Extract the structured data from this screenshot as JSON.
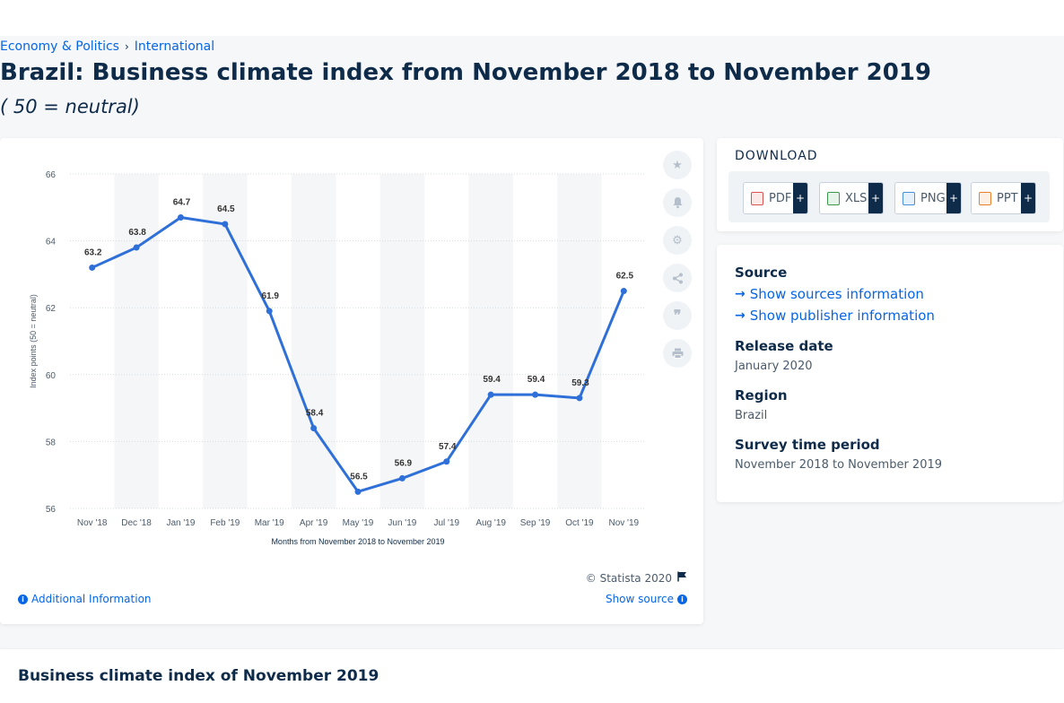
{
  "breadcrumb": {
    "level1": "Economy & Politics",
    "separator": "›",
    "level2": "International"
  },
  "page": {
    "title": "Brazil: Business climate index from November 2018 to November 2019",
    "subtitle": "( 50 = neutral)"
  },
  "chart_data": {
    "type": "line",
    "categories": [
      "Nov '18",
      "Dec '18",
      "Jan '19",
      "Feb '19",
      "Mar '19",
      "Apr '19",
      "May '19",
      "Jun '19",
      "Jul '19",
      "Aug '19",
      "Sep '19",
      "Oct '19",
      "Nov '19"
    ],
    "series": [
      {
        "values": [
          63.2,
          63.8,
          64.7,
          64.5,
          61.9,
          58.4,
          56.5,
          56.9,
          57.4,
          59.4,
          59.4,
          59.3,
          62.5
        ]
      }
    ],
    "data_labels": [
      "63.2",
      "63.8",
      "64.7",
      "64.5",
      "61.9",
      "58.4",
      "56.5",
      "56.9",
      "57.4",
      "59.4",
      "59.4",
      "59.3",
      "62.5"
    ],
    "ylim": [
      56,
      66
    ],
    "yticks": [
      56,
      58,
      60,
      62,
      64,
      66
    ],
    "xlabel": "Months from November 2018 to November 2019",
    "ylabel": "Index points (50 = neutral)",
    "grid": true,
    "line_color": "#2f6fd8",
    "band_color": "#f5f6f7"
  },
  "chart_footer": {
    "copyright": "© Statista 2020",
    "additional_info": "Additional Information",
    "show_source": "Show source"
  },
  "tools": [
    "star-icon",
    "bell-icon",
    "gear-icon",
    "share-icon",
    "quote-icon",
    "print-icon"
  ],
  "download": {
    "title": "DOWNLOAD",
    "buttons": [
      {
        "label": "PDF",
        "color": "#d9534f"
      },
      {
        "label": "XLS",
        "color": "#3c9a4a"
      },
      {
        "label": "PNG",
        "color": "#4a90d9"
      },
      {
        "label": "PPT",
        "color": "#e8802a"
      }
    ],
    "plus": "+"
  },
  "info": {
    "source_heading": "Source",
    "show_sources": "Show sources information",
    "show_publisher": "Show publisher information",
    "release_heading": "Release date",
    "release_value": "January 2020",
    "region_heading": "Region",
    "region_value": "Brazil",
    "survey_heading": "Survey time period",
    "survey_value": "November 2018 to November 2019"
  },
  "bottom": {
    "title": "Business climate index of November 2019"
  }
}
